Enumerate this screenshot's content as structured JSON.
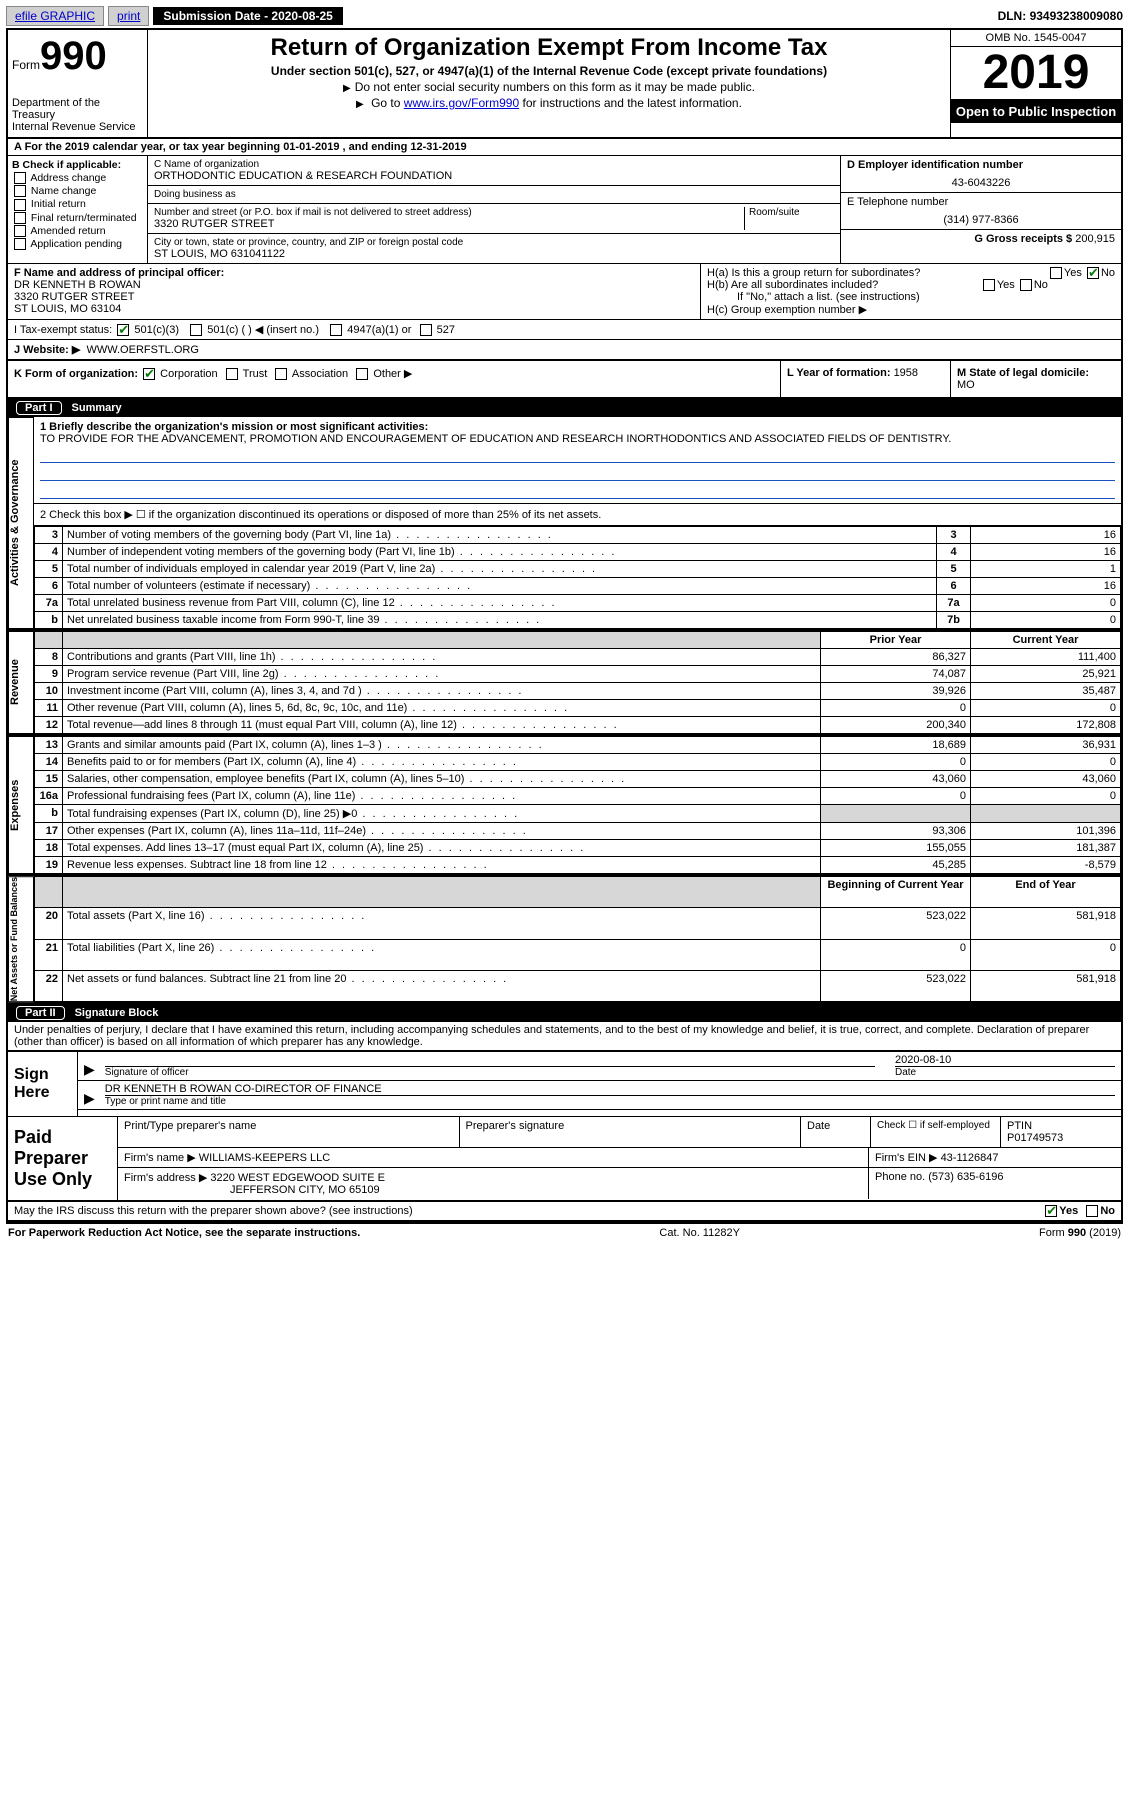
{
  "topbar": {
    "efile": "efile GRAPHIC",
    "print": "print",
    "submission_label": "Submission Date - ",
    "submission_date": "2020-08-25",
    "dln_label": "DLN: ",
    "dln": "93493238009080"
  },
  "header": {
    "form_word": "Form",
    "form_no": "990",
    "dept": "Department of the Treasury\nInternal Revenue Service",
    "title": "Return of Organization Exempt From Income Tax",
    "sub": "Under section 501(c), 527, or 4947(a)(1) of the Internal Revenue Code (except private foundations)",
    "line1": "Do not enter social security numbers on this form as it may be made public.",
    "line2_pre": "Go to ",
    "line2_link": "www.irs.gov/Form990",
    "line2_post": " for instructions and the latest information.",
    "omb": "OMB No. 1545-0047",
    "year": "2019",
    "inspect": "Open to Public Inspection"
  },
  "lineA": "A For the 2019 calendar year, or tax year beginning 01-01-2019    , and ending 12-31-2019",
  "B": {
    "label": "B Check if applicable:",
    "opts": [
      "Address change",
      "Name change",
      "Initial return",
      "Final return/terminated",
      "Amended return",
      "Application pending"
    ]
  },
  "C": {
    "name_lbl": "C Name of organization",
    "name": "ORTHODONTIC EDUCATION & RESEARCH FOUNDATION",
    "dba_lbl": "Doing business as",
    "dba": "",
    "addr_lbl": "Number and street (or P.O. box if mail is not delivered to street address)",
    "room_lbl": "Room/suite",
    "addr": "3320 RUTGER STREET",
    "city_lbl": "City or town, state or province, country, and ZIP or foreign postal code",
    "city": "ST LOUIS, MO  631041122"
  },
  "D": {
    "lbl": "D Employer identification number",
    "val": "43-6043226"
  },
  "E": {
    "lbl": "E Telephone number",
    "val": "(314) 977-8366"
  },
  "G": {
    "lbl": "G Gross receipts $ ",
    "val": "200,915"
  },
  "F": {
    "lbl": "F  Name and address of principal officer:",
    "name": "DR KENNETH B ROWAN",
    "addr1": "3320 RUTGER STREET",
    "addr2": "ST LOUIS, MO  63104"
  },
  "H": {
    "a": "H(a)  Is this a group return for subordinates?",
    "a_yes": "Yes",
    "a_no": "No",
    "b": "H(b)  Are all subordinates included?",
    "b_yes": "Yes",
    "b_no": "No",
    "b_note": "If \"No,\" attach a list. (see instructions)",
    "c": "H(c)  Group exemption number ▶"
  },
  "I": {
    "lbl": "I  Tax-exempt status:",
    "o1": "501(c)(3)",
    "o2": "501(c) (   ) ◀ (insert no.)",
    "o3": "4947(a)(1) or",
    "o4": "527"
  },
  "J": {
    "lbl": "J  Website: ▶",
    "val": "WWW.OERFSTL.ORG"
  },
  "K": {
    "lbl": "K Form of organization:",
    "opts": [
      "Corporation",
      "Trust",
      "Association",
      "Other ▶"
    ]
  },
  "L": {
    "lbl": "L Year of formation: ",
    "val": "1958"
  },
  "M": {
    "lbl": "M State of legal domicile:",
    "val": "MO"
  },
  "partI": {
    "num": "Part I",
    "title": "Summary",
    "l1_lbl": "1  Briefly describe the organization's mission or most significant activities:",
    "l1_text": "TO PROVIDE FOR THE ADVANCEMENT, PROMOTION AND ENCOURAGEMENT OF EDUCATION AND RESEARCH INORTHODONTICS AND ASSOCIATED FIELDS OF DENTISTRY.",
    "l2": "2  Check this box ▶ ☐  if the organization discontinued its operations or disposed of more than 25% of its net assets."
  },
  "side_labels": {
    "ag": "Activities & Governance",
    "rev": "Revenue",
    "exp": "Expenses",
    "net": "Net Assets or Fund Balances"
  },
  "govRows": [
    {
      "n": "3",
      "d": "Number of voting members of the governing body (Part VI, line 1a)",
      "b": "3",
      "v": "16"
    },
    {
      "n": "4",
      "d": "Number of independent voting members of the governing body (Part VI, line 1b)",
      "b": "4",
      "v": "16"
    },
    {
      "n": "5",
      "d": "Total number of individuals employed in calendar year 2019 (Part V, line 2a)",
      "b": "5",
      "v": "1"
    },
    {
      "n": "6",
      "d": "Total number of volunteers (estimate if necessary)",
      "b": "6",
      "v": "16"
    },
    {
      "n": "7a",
      "d": "Total unrelated business revenue from Part VIII, column (C), line 12",
      "b": "7a",
      "v": "0"
    },
    {
      "n": "b",
      "d": "Net unrelated business taxable income from Form 990-T, line 39",
      "b": "7b",
      "v": "0"
    }
  ],
  "col_hdr": {
    "prior": "Prior Year",
    "current": "Current Year"
  },
  "revRows": [
    {
      "n": "8",
      "d": "Contributions and grants (Part VIII, line 1h)",
      "p": "86,327",
      "c": "111,400"
    },
    {
      "n": "9",
      "d": "Program service revenue (Part VIII, line 2g)",
      "p": "74,087",
      "c": "25,921"
    },
    {
      "n": "10",
      "d": "Investment income (Part VIII, column (A), lines 3, 4, and 7d )",
      "p": "39,926",
      "c": "35,487"
    },
    {
      "n": "11",
      "d": "Other revenue (Part VIII, column (A), lines 5, 6d, 8c, 9c, 10c, and 11e)",
      "p": "0",
      "c": "0"
    },
    {
      "n": "12",
      "d": "Total revenue—add lines 8 through 11 (must equal Part VIII, column (A), line 12)",
      "p": "200,340",
      "c": "172,808"
    }
  ],
  "expRows": [
    {
      "n": "13",
      "d": "Grants and similar amounts paid (Part IX, column (A), lines 1–3 )",
      "p": "18,689",
      "c": "36,931"
    },
    {
      "n": "14",
      "d": "Benefits paid to or for members (Part IX, column (A), line 4)",
      "p": "0",
      "c": "0"
    },
    {
      "n": "15",
      "d": "Salaries, other compensation, employee benefits (Part IX, column (A), lines 5–10)",
      "p": "43,060",
      "c": "43,060"
    },
    {
      "n": "16a",
      "d": "Professional fundraising fees (Part IX, column (A), line 11e)",
      "p": "0",
      "c": "0"
    },
    {
      "n": "b",
      "d": "Total fundraising expenses (Part IX, column (D), line 25) ▶0",
      "p": "__shade__",
      "c": "__shade__"
    },
    {
      "n": "17",
      "d": "Other expenses (Part IX, column (A), lines 11a–11d, 11f–24e)",
      "p": "93,306",
      "c": "101,396"
    },
    {
      "n": "18",
      "d": "Total expenses. Add lines 13–17 (must equal Part IX, column (A), line 25)",
      "p": "155,055",
      "c": "181,387"
    },
    {
      "n": "19",
      "d": "Revenue less expenses. Subtract line 18 from line 12",
      "p": "45,285",
      "c": "-8,579"
    }
  ],
  "net_hdr": {
    "beg": "Beginning of Current Year",
    "end": "End of Year"
  },
  "netRows": [
    {
      "n": "20",
      "d": "Total assets (Part X, line 16)",
      "p": "523,022",
      "c": "581,918"
    },
    {
      "n": "21",
      "d": "Total liabilities (Part X, line 26)",
      "p": "0",
      "c": "0"
    },
    {
      "n": "22",
      "d": "Net assets or fund balances. Subtract line 21 from line 20",
      "p": "523,022",
      "c": "581,918"
    }
  ],
  "partII": {
    "num": "Part II",
    "title": "Signature Block",
    "decl": "Under penalties of perjury, I declare that I have examined this return, including accompanying schedules and statements, and to the best of my knowledge and belief, it is true, correct, and complete. Declaration of preparer (other than officer) is based on all information of which preparer has any knowledge."
  },
  "sign": {
    "here": "Sign Here",
    "sig_lbl": "Signature of officer",
    "date_lbl": "Date",
    "date": "2020-08-10",
    "name": "DR KENNETH B ROWAN  CO-DIRECTOR OF FINANCE",
    "name_lbl": "Type or print name and title"
  },
  "prep": {
    "label": "Paid Preparer Use Only",
    "r1": {
      "a": "Print/Type preparer's name",
      "b": "Preparer's signature",
      "c": "Date",
      "d_lbl": "Check ☐ if self-employed",
      "e_lbl": "PTIN",
      "e": "P01749573"
    },
    "r2": {
      "a_lbl": "Firm's name    ▶",
      "a": "WILLIAMS-KEEPERS LLC",
      "b_lbl": "Firm's EIN ▶",
      "b": "43-1126847"
    },
    "r3": {
      "a_lbl": "Firm's address ▶",
      "a1": "3220 WEST EDGEWOOD SUITE E",
      "a2": "JEFFERSON CITY, MO  65109",
      "b_lbl": "Phone no. ",
      "b": "(573) 635-6196"
    }
  },
  "discuss": {
    "q": "May the IRS discuss this return with the preparer shown above? (see instructions)",
    "yes": "Yes",
    "no": "No"
  },
  "footer": {
    "left": "For Paperwork Reduction Act Notice, see the separate instructions.",
    "mid": "Cat. No. 11282Y",
    "right": "Form 990 (2019)"
  }
}
